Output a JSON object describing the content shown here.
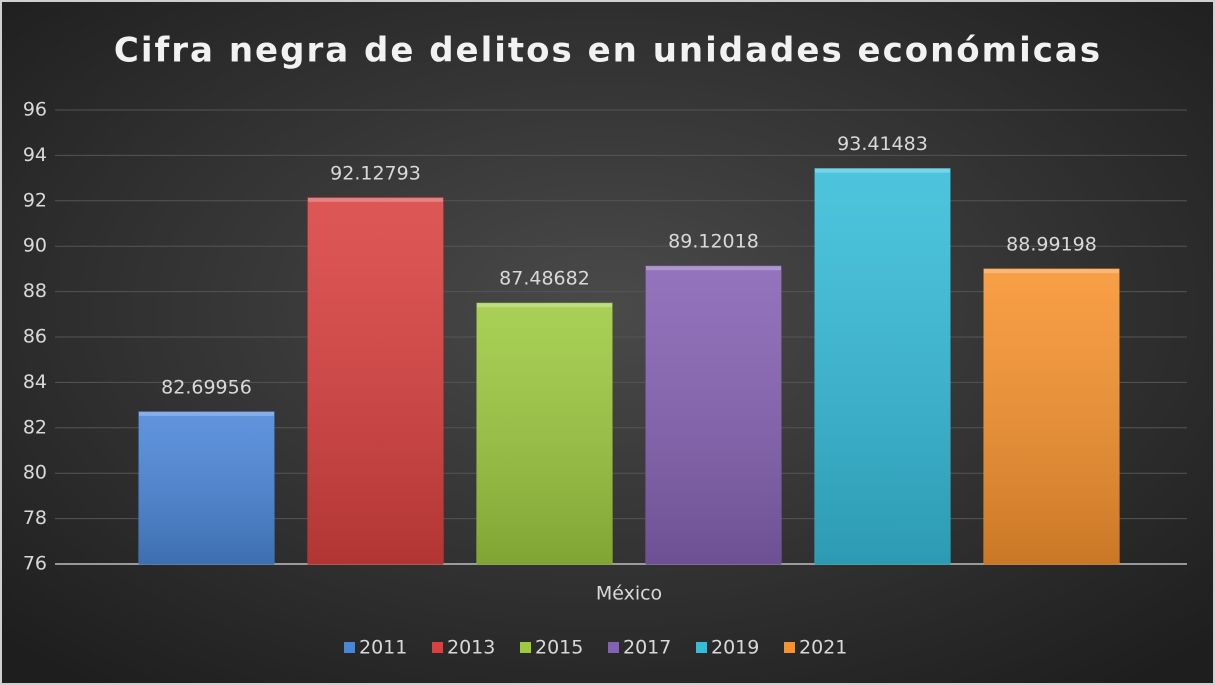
{
  "chart_data": {
    "type": "bar",
    "title": "Cifra negra de delitos en unidades económicas",
    "categories": [
      "México"
    ],
    "series": [
      {
        "name": "2011",
        "color": "#4a86d8",
        "values": [
          82.69956
        ]
      },
      {
        "name": "2013",
        "color": "#d9403f",
        "values": [
          92.12793
        ]
      },
      {
        "name": "2015",
        "color": "#9dc93f",
        "values": [
          87.48682
        ]
      },
      {
        "name": "2017",
        "color": "#8561b3",
        "values": [
          89.12018
        ]
      },
      {
        "name": "2019",
        "color": "#35bcd9",
        "values": [
          93.41483
        ]
      },
      {
        "name": "2021",
        "color": "#f7922e",
        "values": [
          88.99198
        ]
      }
    ],
    "ylim": [
      76,
      96
    ],
    "yticks": [
      76,
      78,
      80,
      82,
      84,
      86,
      88,
      90,
      92,
      94,
      96
    ],
    "grid": true,
    "legend": "bottom"
  }
}
